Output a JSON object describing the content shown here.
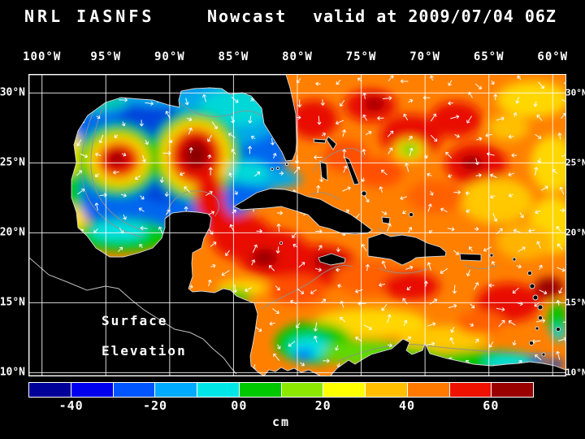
{
  "title": {
    "model": "NRL IASNFS",
    "product": "Nowcast",
    "valid": "valid at 2009/07/04 06Z"
  },
  "axes": {
    "lon_labels": [
      "100°W",
      "95°W",
      "90°W",
      "85°W",
      "80°W",
      "75°W",
      "70°W",
      "65°W",
      "60°W"
    ],
    "lat_labels": [
      "30°N",
      "25°N",
      "20°N",
      "15°N",
      "10°N"
    ]
  },
  "map": {
    "annotation": {
      "line1": "Surface",
      "line2": "Elevation"
    }
  },
  "colorbar": {
    "unit": "cm",
    "tick_labels": [
      "-40",
      "-20",
      "00",
      "20",
      "40",
      "60"
    ],
    "segment_colors": [
      "#000099",
      "#0000EE",
      "#0055FF",
      "#00AAFF",
      "#00E6E6",
      "#00C800",
      "#8CE800",
      "#FFFF00",
      "#FFBE00",
      "#FF7800",
      "#EE1100",
      "#990000"
    ]
  }
}
